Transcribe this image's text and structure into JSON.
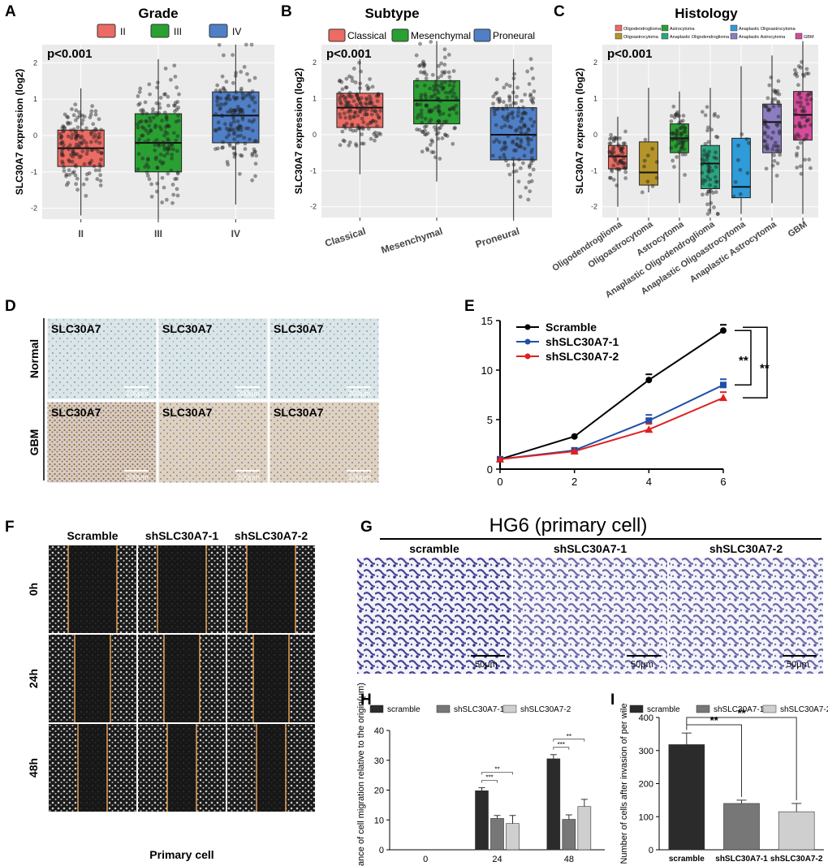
{
  "colors": {
    "II": "#ec6b63",
    "III": "#2aa033",
    "IV": "#4f7fc7",
    "Classical": "#ec6b63",
    "Mesenchymal": "#2aa033",
    "Proneural": "#4f7fc7",
    "scramble": "#2b2b2b",
    "sh1": "#777777",
    "sh2": "#cfcfcf",
    "Scramble": "#000000",
    "shSLC30A7-1": "#1f4fa8",
    "shSLC30A7-2": "#e02020"
  },
  "panel_labels": [
    "A",
    "B",
    "C",
    "D",
    "E",
    "F",
    "G",
    "H",
    "I"
  ],
  "y_label_box": "SLC30A7 expression (log2)",
  "y_ticks_box": [
    "2",
    "1",
    "0",
    "-1",
    "-2"
  ],
  "chart_data": [
    {
      "panel": "A",
      "type": "box",
      "title": "Grade",
      "pvalue": "p<0.001",
      "ylabel": "SLC30A7 expression (log2)",
      "ylim": [
        -2.3,
        2.5
      ],
      "legend": [
        "II",
        "III",
        "IV"
      ],
      "categories": [
        "II",
        "III",
        "IV"
      ],
      "boxes": [
        {
          "q1": -0.85,
          "median": -0.35,
          "q3": 0.15,
          "lo": -2.2,
          "hi": 1.3
        },
        {
          "q1": -1.0,
          "median": -0.2,
          "q3": 0.6,
          "lo": -2.3,
          "hi": 2.1
        },
        {
          "q1": -0.2,
          "median": 0.55,
          "q3": 1.2,
          "lo": -1.9,
          "hi": 2.5
        }
      ]
    },
    {
      "panel": "B",
      "type": "box",
      "title": "Subtype",
      "pvalue": "p<0.001",
      "ylabel": "SLC30A7 expression (log2)",
      "ylim": [
        -2.3,
        2.5
      ],
      "legend": [
        "Classical",
        "Mesenchymal",
        "Proneural"
      ],
      "categories": [
        "Classical",
        "Mesenchymal",
        "Proneural"
      ],
      "boxes": [
        {
          "q1": 0.2,
          "median": 0.75,
          "q3": 1.15,
          "lo": -1.1,
          "hi": 2.1
        },
        {
          "q1": 0.3,
          "median": 0.95,
          "q3": 1.5,
          "lo": -1.3,
          "hi": 2.6
        },
        {
          "q1": -0.7,
          "median": 0.0,
          "q3": 0.75,
          "lo": -2.3,
          "hi": 2.1
        }
      ]
    },
    {
      "panel": "C",
      "type": "box",
      "title": "Histology",
      "pvalue": "p<0.001",
      "ylabel": "SLC30A7 expression (log2)",
      "ylim": [
        -2.3,
        2.5
      ],
      "legend": [
        "Oligodendroglioma",
        "Astrocytoma",
        "Anaplastic Oligoastrocytoma",
        "Oligoastrocytoma",
        "Anaplastic Oligodendroglioma",
        "Anaplastic Astrocytoma",
        "GBM"
      ],
      "categories": [
        "Oligodendroglioma",
        "Oligoastrocytoma",
        "Astrocytoma",
        "Anaplastic Oligodendroglioma",
        "Anaplastic Oligoastrocytoma",
        "Anaplastic Astrocytoma",
        "GBM"
      ],
      "boxes": [
        {
          "q1": -0.95,
          "median": -0.6,
          "q3": -0.3,
          "lo": -2.0,
          "hi": 0.5
        },
        {
          "q1": -1.4,
          "median": -1.05,
          "q3": -0.2,
          "lo": -1.6,
          "hi": 1.3
        },
        {
          "q1": -0.5,
          "median": -0.1,
          "q3": 0.3,
          "lo": -1.9,
          "hi": 1.2
        },
        {
          "q1": -1.5,
          "median": -0.8,
          "q3": -0.3,
          "lo": -2.2,
          "hi": 1.3
        },
        {
          "q1": -1.75,
          "median": -1.45,
          "q3": -0.1,
          "lo": -2.2,
          "hi": 1.9
        },
        {
          "q1": -0.5,
          "median": 0.35,
          "q3": 0.85,
          "lo": -1.9,
          "hi": 2.2
        },
        {
          "q1": -0.15,
          "median": 0.55,
          "q3": 1.2,
          "lo": -2.2,
          "hi": 2.6
        }
      ],
      "colors": [
        "#ec6b63",
        "#b5952a",
        "#2aa033",
        "#2aa581",
        "#2f9bd8",
        "#8c7cc0",
        "#d44c9a"
      ]
    },
    {
      "panel": "E",
      "type": "line",
      "x": [
        0,
        2,
        4,
        6
      ],
      "xlim": [
        0,
        6
      ],
      "ylim": [
        0,
        15
      ],
      "xticks": [
        "0",
        "2",
        "4",
        "6"
      ],
      "yticks": [
        "0",
        "5",
        "10",
        "15"
      ],
      "series": [
        {
          "name": "Scramble",
          "values": [
            1.0,
            3.3,
            9.0,
            14.0
          ]
        },
        {
          "name": "shSLC30A7-1",
          "values": [
            1.0,
            1.9,
            4.9,
            8.5
          ]
        },
        {
          "name": "shSLC30A7-2",
          "values": [
            1.0,
            1.8,
            4.0,
            7.2
          ]
        }
      ],
      "annotations": [
        "**",
        "**"
      ]
    },
    {
      "panel": "H",
      "type": "bar",
      "categories": [
        "0",
        "24",
        "48"
      ],
      "ylim": [
        0,
        40
      ],
      "yticks": [
        "0",
        "10",
        "20",
        "30",
        "40"
      ],
      "ylabel": "Distance of cell migration relative to the origin(μm)",
      "series": [
        {
          "name": "scramble",
          "values": [
            0,
            19.8,
            30.5
          ],
          "err": [
            0,
            1.0,
            1.4
          ]
        },
        {
          "name": "shSLC30A7-1",
          "values": [
            0,
            10.5,
            10.2
          ],
          "err": [
            0,
            1.0,
            1.5
          ]
        },
        {
          "name": "shSLC30A7-2",
          "values": [
            0,
            8.8,
            14.5
          ],
          "err": [
            0,
            2.7,
            2.4
          ]
        }
      ],
      "sig": [
        "***",
        "**",
        "***",
        "**"
      ]
    },
    {
      "panel": "I",
      "type": "bar",
      "categories": [
        "scramble",
        "shSLC30A7-1",
        "shSLC30A7-2"
      ],
      "ylim": [
        0,
        400
      ],
      "yticks": [
        "0",
        "100",
        "200",
        "300",
        "400"
      ],
      "ylabel": "Number of cells after invasion of per wile",
      "values": [
        318,
        140,
        115
      ],
      "err": [
        35,
        10,
        25
      ],
      "sig": [
        "**",
        "**"
      ]
    }
  ],
  "panel_D": {
    "rows": [
      "Normal",
      "GBM"
    ],
    "label": "SLC30A7",
    "scale": "200μm"
  },
  "panel_F": {
    "columns": [
      "Scramble",
      "shSLC30A7-1",
      "shSLC30A7-2"
    ],
    "rows": [
      "0h",
      "24h",
      "48h"
    ],
    "footer": "Primary cell"
  },
  "panel_G": {
    "title": "HG6 (primary cell)",
    "columns": [
      "scramble",
      "shSLC30A7-1",
      "shSLC30A7-2"
    ],
    "scale": "50μm"
  }
}
